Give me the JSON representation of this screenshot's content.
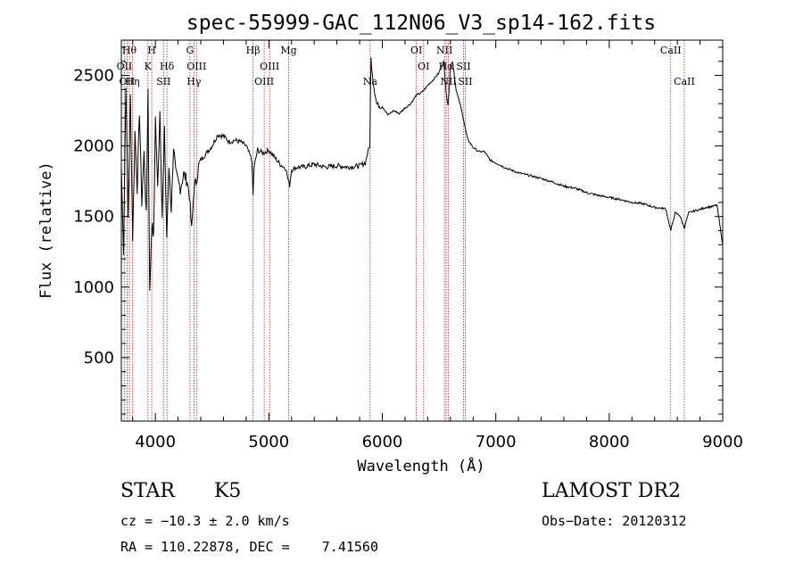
{
  "chart_data": {
    "type": "line",
    "title": "spec-55999-GAC_112N06_V3_sp14-162.fits",
    "xlabel": "Wavelength (Å)",
    "ylabel": "Flux (relative)",
    "xlim": [
      3700,
      9000
    ],
    "ylim": [
      50,
      2750
    ],
    "x_ticks": [
      4000,
      5000,
      6000,
      7000,
      8000,
      9000
    ],
    "y_ticks": [
      500,
      1000,
      1500,
      2000,
      2500
    ],
    "grid": false,
    "series": [
      {
        "x": [
          3700,
          3720,
          3740,
          3760,
          3780,
          3800,
          3820,
          3840,
          3860,
          3880,
          3900,
          3920,
          3935,
          3950,
          3968,
          3985,
          4000,
          4020,
          4040,
          4060,
          4080,
          4100,
          4120,
          4140,
          4160,
          4180,
          4200,
          4220,
          4250,
          4280,
          4300,
          4320,
          4340,
          4360,
          4380,
          4400,
          4450,
          4500,
          4550,
          4600,
          4650,
          4700,
          4750,
          4800,
          4850,
          4861,
          4870,
          4900,
          4950,
          5000,
          5050,
          5100,
          5150,
          5170,
          5183,
          5200,
          5250,
          5300,
          5400,
          5500,
          5600,
          5700,
          5800,
          5850,
          5870,
          5890,
          5900,
          5920,
          5950,
          5980,
          6000,
          6050,
          6100,
          6150,
          6200,
          6250,
          6300,
          6350,
          6400,
          6450,
          6500,
          6540,
          6563,
          6580,
          6600,
          6620,
          6650,
          6700,
          6750,
          6800,
          6850,
          6900,
          6950,
          7000,
          7100,
          7200,
          7300,
          7400,
          7500,
          7600,
          7700,
          7800,
          7900,
          8000,
          8100,
          8200,
          8300,
          8400,
          8498,
          8542,
          8580,
          8620,
          8662,
          8700,
          8750,
          8800,
          8850,
          8900,
          8950,
          9000
        ],
        "y": [
          1850,
          1250,
          2450,
          1500,
          2350,
          1350,
          2100,
          1700,
          2250,
          1600,
          1950,
          1500,
          2400,
          950,
          1450,
          1350,
          2200,
          1700,
          2250,
          1500,
          2100,
          1350,
          1850,
          1550,
          2000,
          1800,
          1750,
          1700,
          1800,
          1750,
          1650,
          1400,
          1700,
          1750,
          1850,
          1900,
          1950,
          2000,
          2080,
          2070,
          2030,
          2040,
          2030,
          2000,
          1900,
          1650,
          1850,
          1970,
          1950,
          1970,
          1920,
          1870,
          1840,
          1760,
          1720,
          1830,
          1850,
          1850,
          1870,
          1850,
          1860,
          1850,
          1860,
          1880,
          1950,
          2000,
          2620,
          2450,
          2300,
          2280,
          2280,
          2220,
          2250,
          2230,
          2270,
          2300,
          2360,
          2380,
          2430,
          2470,
          2520,
          2600,
          2380,
          2280,
          2570,
          2600,
          2400,
          2250,
          2050,
          1990,
          1960,
          1960,
          1900,
          1880,
          1840,
          1810,
          1790,
          1770,
          1745,
          1715,
          1700,
          1670,
          1650,
          1635,
          1620,
          1600,
          1590,
          1565,
          1555,
          1400,
          1525,
          1510,
          1420,
          1525,
          1540,
          1550,
          1565,
          1570,
          1580,
          1300
        ]
      }
    ],
    "line_markers": [
      {
        "x": 3727,
        "label": "OII",
        "row": 1
      },
      {
        "x": 3750,
        "label": "OII",
        "row": 2
      },
      {
        "x": 3771,
        "label": "Hθ",
        "row": 0
      },
      {
        "x": 3798,
        "label": "Hη",
        "row": 2
      },
      {
        "x": 3934,
        "label": "K",
        "row": 1
      },
      {
        "x": 3968,
        "label": "H",
        "row": 0
      },
      {
        "x": 4102,
        "label": "Hδ",
        "row": 1
      },
      {
        "x": 4072,
        "label": "SII",
        "row": 2
      },
      {
        "x": 4305,
        "label": "G",
        "row": 0
      },
      {
        "x": 4340,
        "label": "Hγ",
        "row": 2
      },
      {
        "x": 4363,
        "label": "OIII",
        "row": 1
      },
      {
        "x": 4861,
        "label": "Hβ",
        "row": 0
      },
      {
        "x": 4959,
        "label": "OIII",
        "row": 2
      },
      {
        "x": 5007,
        "label": "OIII",
        "row": 1
      },
      {
        "x": 5175,
        "label": "Mg",
        "row": 0
      },
      {
        "x": 5893,
        "label": "Na",
        "row": 2
      },
      {
        "x": 6300,
        "label": "OI",
        "row": 0
      },
      {
        "x": 6364,
        "label": "OI",
        "row": 1
      },
      {
        "x": 6548,
        "label": "NII",
        "row": 0
      },
      {
        "x": 6563,
        "label": "Hα",
        "row": 1
      },
      {
        "x": 6583,
        "label": "NII",
        "row": 2
      },
      {
        "x": 6716,
        "label": "SII",
        "row": 1
      },
      {
        "x": 6731,
        "label": "SII",
        "row": 2
      },
      {
        "x": 8542,
        "label": "CaII",
        "row": 0
      },
      {
        "x": 8662,
        "label": "CaII",
        "row": 2
      }
    ]
  },
  "info": {
    "object_class": "STAR",
    "subclass": "K5",
    "survey": "LAMOST DR2",
    "cz": "cz = −10.3 ± 2.0 km/s",
    "obs_date": "Obs−Date: 20120312",
    "radec": "RA = 110.22878, DEC =    7.41560"
  }
}
